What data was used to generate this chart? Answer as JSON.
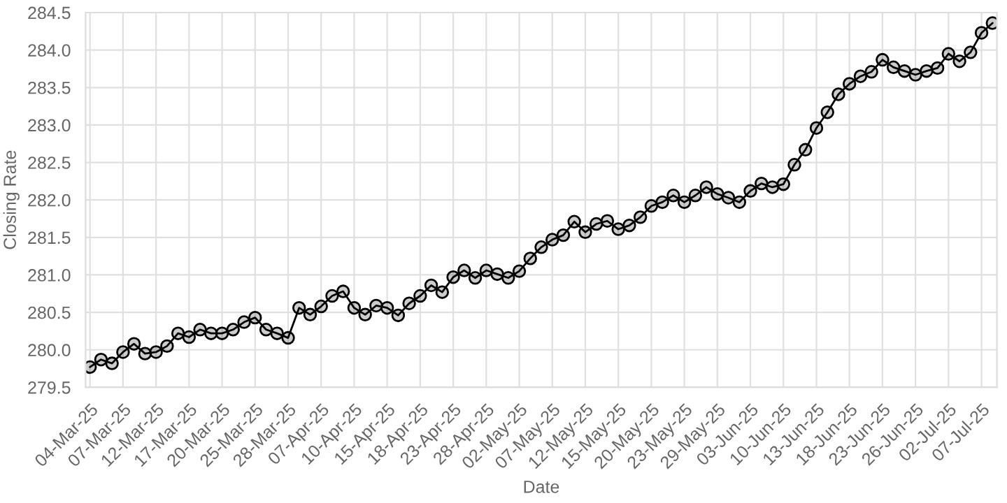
{
  "chart_data": {
    "type": "line",
    "xlabel": "Date",
    "ylabel": "Closing Rate",
    "categories": [
      "04-Mar-25",
      null,
      null,
      "07-Mar-25",
      null,
      null,
      "12-Mar-25",
      null,
      null,
      "17-Mar-25",
      null,
      null,
      "20-Mar-25",
      null,
      null,
      "25-Mar-25",
      null,
      null,
      "28-Mar-25",
      null,
      null,
      "07-Apr-25",
      null,
      null,
      "10-Apr-25",
      null,
      null,
      "15-Apr-25",
      null,
      null,
      "18-Apr-25",
      null,
      null,
      "23-Apr-25",
      null,
      null,
      "28-Apr-25",
      null,
      null,
      "02-May-25",
      null,
      null,
      "07-May-25",
      null,
      null,
      "12-May-25",
      null,
      null,
      "15-May-25",
      null,
      null,
      "20-May-25",
      null,
      null,
      "23-May-25",
      null,
      null,
      "29-May-25",
      null,
      null,
      "03-Jun-25",
      null,
      null,
      "10-Jun-25",
      null,
      null,
      "13-Jun-25",
      null,
      null,
      "18-Jun-25",
      null,
      null,
      "23-Jun-25",
      null,
      null,
      "26-Jun-25",
      null,
      null,
      "02-Jul-25",
      null,
      null,
      "07-Jul-25",
      null
    ],
    "series": [
      {
        "color": "#000000",
        "values": [
          279.77,
          279.87,
          279.82,
          279.97,
          280.08,
          279.95,
          279.97,
          280.05,
          280.22,
          280.17,
          280.27,
          280.22,
          280.22,
          280.27,
          280.37,
          280.43,
          280.27,
          280.22,
          280.16,
          280.56,
          280.47,
          280.58,
          280.72,
          280.78,
          280.56,
          280.47,
          280.59,
          280.56,
          280.46,
          280.62,
          280.72,
          280.86,
          280.77,
          280.97,
          281.06,
          280.96,
          281.06,
          281.01,
          280.96,
          281.05,
          281.22,
          281.37,
          281.47,
          281.53,
          281.71,
          281.57,
          281.68,
          281.72,
          281.61,
          281.66,
          281.77,
          281.92,
          281.97,
          282.06,
          281.97,
          282.06,
          282.17,
          282.08,
          282.03,
          281.97,
          282.12,
          282.22,
          282.17,
          282.21,
          282.47,
          282.67,
          282.96,
          283.17,
          283.41,
          283.55,
          283.65,
          283.71,
          283.87,
          283.77,
          283.72,
          283.67,
          283.72,
          283.76,
          283.95,
          283.85,
          283.97,
          284.23,
          284.36
        ]
      }
    ],
    "ylim": [
      279.5,
      284.5
    ],
    "yticks": [
      279.5,
      {
        "value": 280,
        "label": "280.0"
      },
      280.5,
      {
        "value": 281,
        "label": "281.0"
      },
      281.5,
      {
        "value": 282,
        "label": "282.0"
      },
      282.5,
      {
        "value": 283,
        "label": "283.0"
      },
      283.5,
      {
        "value": 284,
        "label": "284.0"
      },
      284.5
    ],
    "grid": true,
    "marker": "circle",
    "line_style": "solid"
  }
}
